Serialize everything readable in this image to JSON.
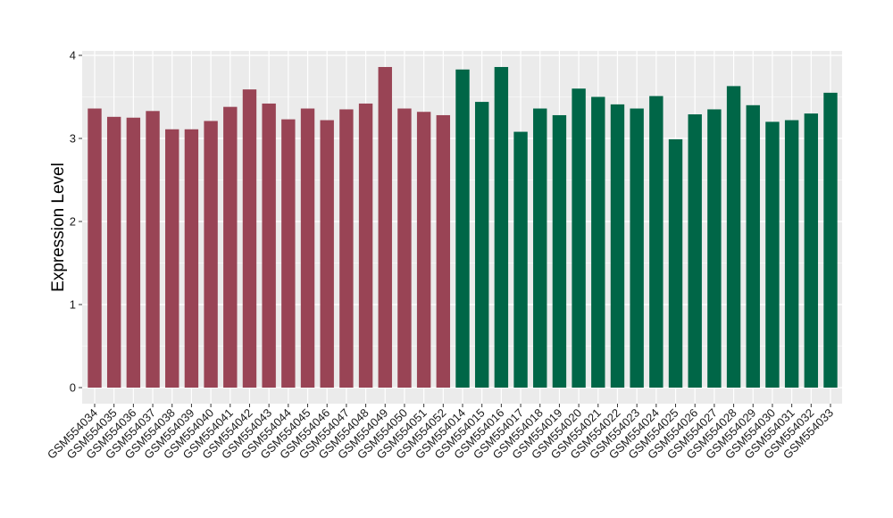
{
  "chart_data": {
    "type": "bar",
    "title": "",
    "xlabel": "",
    "ylabel": "Expression Level",
    "ylim": [
      0,
      4
    ],
    "yticks": [
      "0",
      "1",
      "2",
      "3",
      "4"
    ],
    "grid": true,
    "categories": [
      "GSM554034",
      "GSM554035",
      "GSM554036",
      "GSM554037",
      "GSM554038",
      "GSM554039",
      "GSM554040",
      "GSM554041",
      "GSM554042",
      "GSM554043",
      "GSM554044",
      "GSM554045",
      "GSM554046",
      "GSM554047",
      "GSM554048",
      "GSM554049",
      "GSM554050",
      "GSM554051",
      "GSM554052",
      "GSM554014",
      "GSM554015",
      "GSM554016",
      "GSM554017",
      "GSM554018",
      "GSM554019",
      "GSM554020",
      "GSM554021",
      "GSM554022",
      "GSM554023",
      "GSM554024",
      "GSM554025",
      "GSM554026",
      "GSM554027",
      "GSM554028",
      "GSM554029",
      "GSM554030",
      "GSM554031",
      "GSM554032",
      "GSM554033"
    ],
    "values": [
      3.36,
      3.26,
      3.25,
      3.33,
      3.11,
      3.11,
      3.21,
      3.38,
      3.59,
      3.42,
      3.23,
      3.36,
      3.22,
      3.35,
      3.42,
      3.86,
      3.36,
      3.32,
      3.28,
      3.83,
      3.44,
      3.86,
      3.08,
      3.36,
      3.28,
      3.6,
      3.5,
      3.41,
      3.36,
      3.51,
      2.99,
      3.29,
      3.35,
      3.63,
      3.4,
      3.2,
      3.22,
      3.3,
      3.55
    ],
    "bar_colors": [
      "#994455",
      "#994455",
      "#994455",
      "#994455",
      "#994455",
      "#994455",
      "#994455",
      "#994455",
      "#994455",
      "#994455",
      "#994455",
      "#994455",
      "#994455",
      "#994455",
      "#994455",
      "#994455",
      "#994455",
      "#994455",
      "#994455",
      "#006647",
      "#006647",
      "#006647",
      "#006647",
      "#006647",
      "#006647",
      "#006647",
      "#006647",
      "#006647",
      "#006647",
      "#006647",
      "#006647",
      "#006647",
      "#006647",
      "#006647",
      "#006647",
      "#006647",
      "#006647",
      "#006647",
      "#006647"
    ],
    "panel_background": "#ebebeb",
    "grid_color": "#ffffff"
  }
}
